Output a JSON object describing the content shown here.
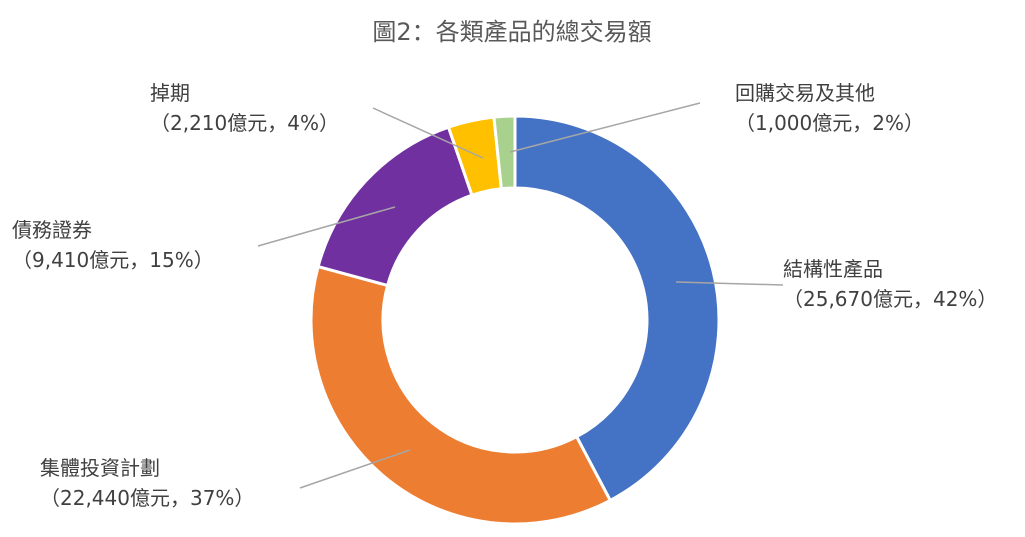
{
  "chart_data": {
    "type": "pie",
    "style": "doughnut",
    "title": "圖2：各類產品的總交易額",
    "slices": [
      {
        "name": "結構性產品",
        "value": 25670,
        "detail": "（25,670億元，42%）",
        "color": "#4472C4"
      },
      {
        "name": "集體投資計劃",
        "value": 22440,
        "detail": "（22,440億元，37%）",
        "color": "#ED7D31"
      },
      {
        "name": "債務證券",
        "value": 9410,
        "detail": "（9,410億元，15%）",
        "color": "#7030A0"
      },
      {
        "name": "掉期",
        "value": 2210,
        "detail": "（2,210億元，4%）",
        "color": "#FFC000"
      },
      {
        "name": "回購交易及其他",
        "value": 1000,
        "detail": "（1,000億元，2%）",
        "color": "#A9D18E"
      }
    ]
  }
}
